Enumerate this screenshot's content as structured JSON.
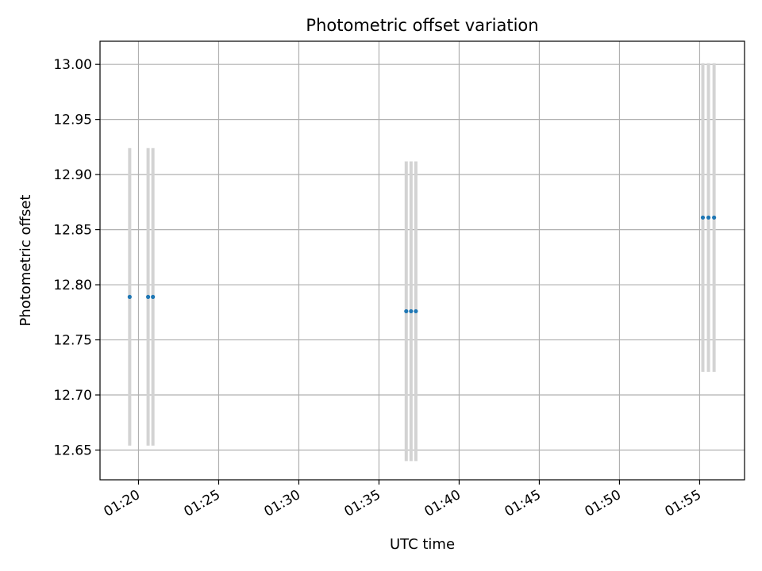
{
  "chart_data": {
    "type": "scatter",
    "title": "Photometric offset variation",
    "xlabel": "UTC time",
    "ylabel": "Photometric offset",
    "grid": true,
    "x_ticks": [
      "01:20",
      "01:25",
      "01:30",
      "01:35",
      "01:40",
      "01:45",
      "01:50",
      "01:55"
    ],
    "y_ticks": [
      "12.65",
      "12.70",
      "12.75",
      "12.80",
      "12.85",
      "12.90",
      "12.95",
      "13.00"
    ],
    "xlim": [
      "01:17.6",
      "01:57.8"
    ],
    "ylim": [
      12.623,
      13.021
    ],
    "series": [
      {
        "style": "points with error bars",
        "marker_color": "#1f77b4",
        "errorbar_color": "#d3d3d3",
        "points": [
          {
            "x": "01:19.45",
            "y": 12.789,
            "yerr": 0.135
          },
          {
            "x": "01:20.6",
            "y": 12.789,
            "yerr": 0.135
          },
          {
            "x": "01:20.9",
            "y": 12.789,
            "yerr": 0.135
          },
          {
            "x": "01:36.7",
            "y": 12.776,
            "yerr": 0.136
          },
          {
            "x": "01:37.0",
            "y": 12.776,
            "yerr": 0.136
          },
          {
            "x": "01:37.3",
            "y": 12.776,
            "yerr": 0.136
          },
          {
            "x": "01:55.2",
            "y": 12.861,
            "yerr": 0.14
          },
          {
            "x": "01:55.55",
            "y": 12.861,
            "yerr": 0.14
          },
          {
            "x": "01:55.9",
            "y": 12.861,
            "yerr": 0.14
          }
        ]
      }
    ]
  }
}
